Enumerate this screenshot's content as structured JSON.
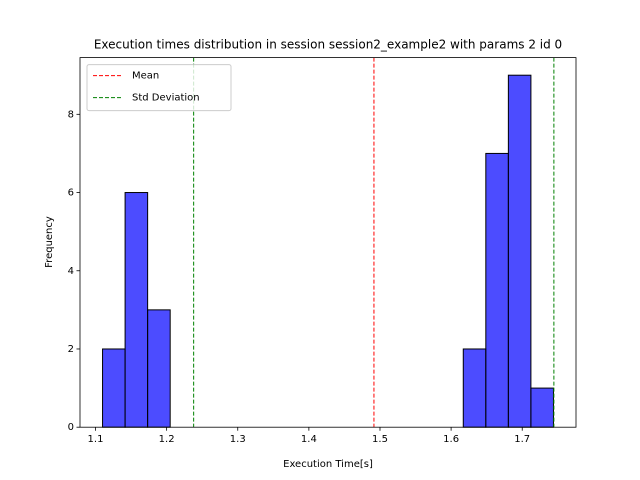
{
  "chart_data": {
    "type": "histogram",
    "title": "Execution times distribution in session session2_example2 with params 2 id 0",
    "xlabel": "Execution Time[s]",
    "ylabel": "Frequency",
    "bins": [
      1.1099,
      1.1416,
      1.1733,
      1.205,
      1.2367,
      1.2684,
      1.3001,
      1.3318,
      1.3635,
      1.3952,
      1.4269,
      1.4586,
      1.4903,
      1.522,
      1.5537,
      1.5854,
      1.6171,
      1.6488,
      1.6805,
      1.7122,
      1.7439
    ],
    "counts": [
      2,
      6,
      3,
      0,
      0,
      0,
      0,
      0,
      0,
      0,
      0,
      0,
      0,
      0,
      0,
      0,
      2,
      7,
      9,
      1
    ],
    "color": "#0000ff",
    "edgecolor": "#000000",
    "lines": [
      {
        "name": "Mean",
        "color": "#ff0000",
        "x": [
          1.4915
        ]
      },
      {
        "name": "Std Deviation",
        "color": "#008000",
        "x": [
          1.238,
          1.7445
        ]
      }
    ],
    "xlim": [
      1.0782,
      1.7756
    ],
    "ylim": [
      0,
      9.45
    ],
    "xticks": [
      1.1,
      1.2,
      1.3,
      1.4,
      1.5,
      1.6,
      1.7
    ],
    "yticks": [
      0,
      2,
      4,
      6,
      8
    ],
    "legend": "upper left",
    "grid": false
  }
}
